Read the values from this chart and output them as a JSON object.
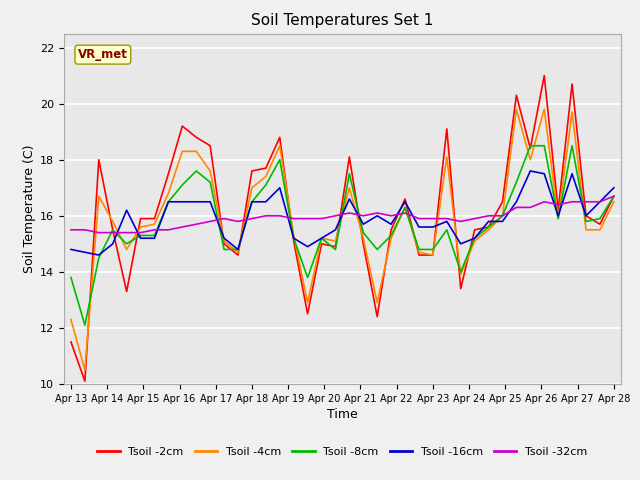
{
  "title": "Soil Temperatures Set 1",
  "xlabel": "Time",
  "ylabel": "Soil Temperature (C)",
  "ylim": [
    10,
    22.5
  ],
  "annotation_text": "VR_met",
  "bg_color": "#f0f0f0",
  "plot_bg_color": "#e8e8e8",
  "grid_color": "#ffffff",
  "x_tick_labels": [
    "Apr 13",
    "Apr 14",
    "Apr 15",
    "Apr 16",
    "Apr 17",
    "Apr 18",
    "Apr 19",
    "Apr 20",
    "Apr 21",
    "Apr 22",
    "Apr 23",
    "Apr 24",
    "Apr 25",
    "Apr 26",
    "Apr 27",
    "Apr 28"
  ],
  "yticks": [
    10,
    12,
    14,
    16,
    18,
    20,
    22
  ],
  "series": {
    "Tsoil -2cm": {
      "color": "#ff0000",
      "lw": 1.2,
      "y": [
        11.5,
        10.1,
        18.0,
        15.5,
        13.3,
        15.9,
        15.9,
        17.5,
        19.2,
        18.8,
        18.5,
        15.0,
        14.6,
        17.6,
        17.7,
        18.8,
        15.1,
        12.5,
        15.0,
        14.9,
        18.1,
        15.0,
        12.4,
        15.5,
        16.6,
        14.6,
        14.6,
        19.1,
        13.4,
        15.5,
        15.6,
        16.5,
        20.3,
        18.4,
        21.0,
        16.2,
        20.7,
        16.0,
        15.7,
        16.7
      ]
    },
    "Tsoil -4cm": {
      "color": "#ff8800",
      "lw": 1.2,
      "y": [
        12.3,
        10.5,
        16.7,
        15.8,
        14.8,
        15.6,
        15.7,
        16.8,
        18.3,
        18.3,
        17.6,
        15.1,
        14.7,
        17.0,
        17.4,
        18.5,
        15.3,
        12.9,
        15.2,
        15.1,
        17.0,
        15.2,
        12.9,
        15.2,
        16.3,
        14.7,
        14.6,
        18.1,
        13.9,
        15.1,
        15.5,
        16.0,
        19.8,
        18.0,
        19.8,
        15.9,
        19.7,
        15.5,
        15.5,
        16.5
      ]
    },
    "Tsoil -8cm": {
      "color": "#00bb00",
      "lw": 1.2,
      "y": [
        13.8,
        12.1,
        14.5,
        15.5,
        15.0,
        15.3,
        15.3,
        16.5,
        17.1,
        17.6,
        17.2,
        14.8,
        14.8,
        16.5,
        17.1,
        18.0,
        15.2,
        13.8,
        15.2,
        14.8,
        17.5,
        15.4,
        14.8,
        15.3,
        16.3,
        14.8,
        14.8,
        15.5,
        14.0,
        15.2,
        15.6,
        16.0,
        17.2,
        18.5,
        18.5,
        15.9,
        18.5,
        15.8,
        15.9,
        16.7
      ]
    },
    "Tsoil -16cm": {
      "color": "#0000cc",
      "lw": 1.2,
      "y": [
        14.8,
        14.7,
        14.6,
        15.0,
        16.2,
        15.2,
        15.2,
        16.5,
        16.5,
        16.5,
        16.5,
        15.2,
        14.8,
        16.5,
        16.5,
        17.0,
        15.2,
        14.9,
        15.2,
        15.5,
        16.6,
        15.7,
        16.0,
        15.7,
        16.5,
        15.6,
        15.6,
        15.8,
        15.0,
        15.2,
        15.8,
        15.8,
        16.5,
        17.6,
        17.5,
        16.0,
        17.5,
        16.0,
        16.5,
        17.0
      ]
    },
    "Tsoil -32cm": {
      "color": "#cc00cc",
      "lw": 1.2,
      "y": [
        15.5,
        15.5,
        15.4,
        15.4,
        15.4,
        15.4,
        15.5,
        15.5,
        15.6,
        15.7,
        15.8,
        15.9,
        15.8,
        15.9,
        16.0,
        16.0,
        15.9,
        15.9,
        15.9,
        16.0,
        16.1,
        16.0,
        16.1,
        16.0,
        16.1,
        15.9,
        15.9,
        15.9,
        15.8,
        15.9,
        16.0,
        16.0,
        16.3,
        16.3,
        16.5,
        16.4,
        16.5,
        16.5,
        16.5,
        16.7
      ]
    }
  }
}
